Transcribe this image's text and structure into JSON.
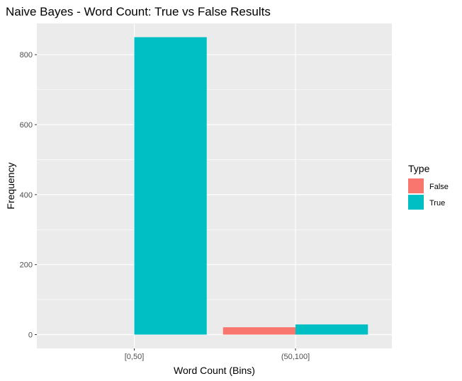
{
  "chart_data": {
    "type": "bar",
    "title": "Naive Bayes - Word Count: True vs False Results",
    "xlabel": "Word Count (Bins)",
    "ylabel": "Frequency",
    "categories": [
      "[0,50]",
      "(50,100]"
    ],
    "series": [
      {
        "name": "False",
        "values": [
          0,
          21
        ],
        "color": "#F8766D"
      },
      {
        "name": "True",
        "values": [
          850,
          29
        ],
        "color": "#00BFC4"
      }
    ],
    "ylim": [
      0,
      850
    ],
    "yticks": [
      0,
      200,
      400,
      600,
      800
    ],
    "grid": true,
    "legend": {
      "title": "Type",
      "position": "right"
    },
    "panel_background": "#EBEBEB",
    "grid_color": "#FFFFFF"
  }
}
